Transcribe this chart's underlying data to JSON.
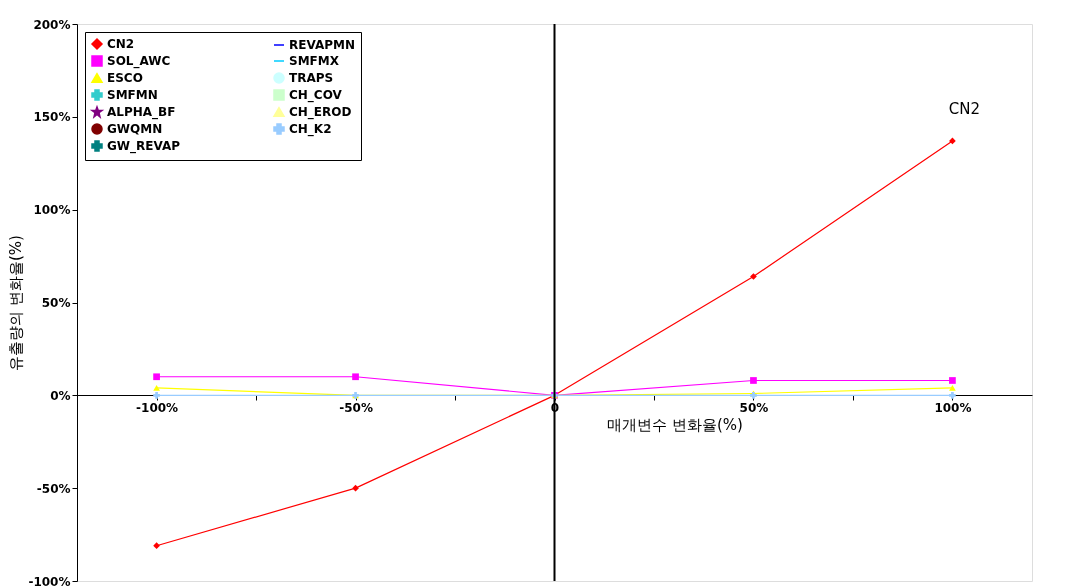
{
  "chart_data": {
    "type": "line",
    "xlabel": "매개변수 변화율(%)",
    "ylabel": "유출량의 변화율(%)",
    "x": [
      -100,
      -50,
      0,
      50,
      100
    ],
    "xlim": [
      -120,
      120
    ],
    "xticks": [
      {
        "value": -100,
        "label": "-100%"
      },
      {
        "value": -75,
        "label": null
      },
      {
        "value": -50,
        "label": "-50%"
      },
      {
        "value": -25,
        "label": null
      },
      {
        "value": 0,
        "label": "0"
      },
      {
        "value": 25,
        "label": null
      },
      {
        "value": 50,
        "label": "50%"
      },
      {
        "value": 75,
        "label": null
      },
      {
        "value": 100,
        "label": "100%"
      }
    ],
    "ylim": [
      -100,
      200
    ],
    "yticks": [
      {
        "value": -100,
        "label": "-100%"
      },
      {
        "value": -50,
        "label": "-50%"
      },
      {
        "value": 0,
        "label": "0%"
      },
      {
        "value": 50,
        "label": "50%"
      },
      {
        "value": 100,
        "label": "100%"
      },
      {
        "value": 150,
        "label": "150%"
      },
      {
        "value": 200,
        "label": "200%"
      }
    ],
    "grid": false,
    "legend": "top left",
    "line_style": "solid",
    "ref_lines": [
      {
        "axis": "x",
        "value": 0,
        "label": null,
        "color": "#000000"
      }
    ],
    "annotations": [
      {
        "text": "CN2",
        "x": 100,
        "y": 137
      }
    ],
    "series": [
      {
        "name": "CN2",
        "color": "#ff0000",
        "marker": "diamond",
        "values": [
          -81,
          -50,
          0,
          64,
          137
        ]
      },
      {
        "name": "SOL_AWC",
        "color": "#ff00ff",
        "marker": "square",
        "values": [
          10,
          10,
          0,
          8,
          8
        ]
      },
      {
        "name": "ESCO",
        "color": "#ffff00",
        "marker": "triangle",
        "values": [
          4,
          0,
          0,
          1,
          4
        ]
      },
      {
        "name": "SMFMN",
        "color": "#33cccc",
        "marker": "cross",
        "values": [
          null,
          null,
          null,
          null,
          null
        ]
      },
      {
        "name": "ALPHA_BF",
        "color": "#800080",
        "marker": "star",
        "values": [
          null,
          null,
          null,
          null,
          null
        ]
      },
      {
        "name": "GWQMN",
        "color": "#800000",
        "marker": "circle",
        "values": [
          null,
          null,
          null,
          null,
          null
        ]
      },
      {
        "name": "GW_REVAP",
        "color": "#008080",
        "marker": "cross",
        "values": [
          null,
          null,
          null,
          null,
          null
        ]
      },
      {
        "name": "REVAPMN",
        "color": "#0000ff",
        "marker": "none",
        "values": [
          null,
          null,
          null,
          null,
          null
        ]
      },
      {
        "name": "SMFMX",
        "color": "#00ccff",
        "marker": "none",
        "values": [
          null,
          null,
          null,
          null,
          null
        ]
      },
      {
        "name": "TRAPS",
        "color": "#ccffff",
        "marker": "circle",
        "values": [
          null,
          null,
          null,
          null,
          null
        ]
      },
      {
        "name": "CH_COV",
        "color": "#ccffcc",
        "marker": "square",
        "values": [
          null,
          null,
          null,
          null,
          null
        ]
      },
      {
        "name": "CH_EROD",
        "color": "#ffff99",
        "marker": "triangle",
        "values": [
          null,
          null,
          null,
          null,
          null
        ]
      },
      {
        "name": "CH_K2",
        "color": "#99ccff",
        "marker": "cross",
        "values": [
          0,
          0,
          0,
          0,
          0
        ]
      }
    ]
  }
}
